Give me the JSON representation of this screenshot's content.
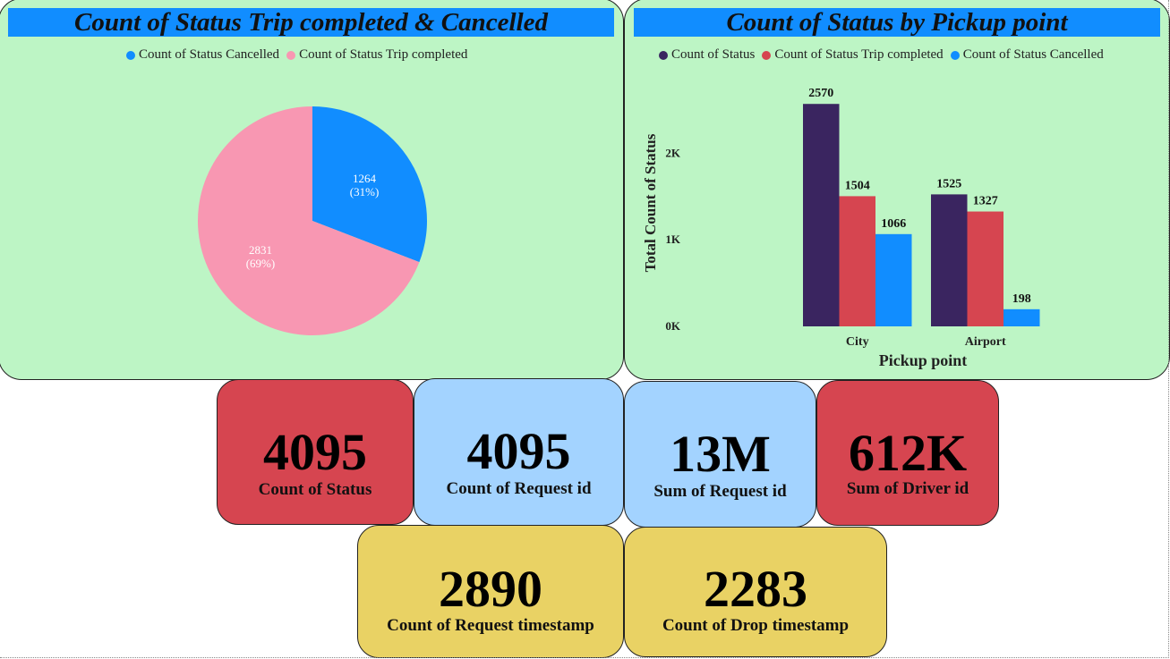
{
  "colors": {
    "panel_bg": "#bdf5c5",
    "title_bar": "#118dff",
    "red_card": "#d64550",
    "blue_card": "#a3d3ff",
    "yellow_card": "#e9d264",
    "cancelled": "#118dff",
    "completed": "#f897b2",
    "completed_bar": "#d64550",
    "status_bar": "#3a2560"
  },
  "pie_panel": {
    "title": "Count of Status Trip completed & Cancelled",
    "legend": [
      {
        "label": "Count of Status Cancelled",
        "color": "#118dff"
      },
      {
        "label": "Count of Status Trip completed",
        "color": "#f897b2"
      }
    ]
  },
  "bar_panel": {
    "title": "Count of Status by Pickup point",
    "legend": [
      {
        "label": "Count of Status",
        "color": "#3a2560"
      },
      {
        "label": "Count of Status Trip completed",
        "color": "#d64550"
      },
      {
        "label": "Count of Status Cancelled",
        "color": "#118dff"
      }
    ]
  },
  "chart_data": [
    {
      "type": "pie",
      "title": "Count of Status Trip completed & Cancelled",
      "slices": [
        {
          "name": "Count of Status Cancelled",
          "value": 1264,
          "percent": "31%",
          "label": "1264",
          "pct_label": "(31%)",
          "color": "#118dff"
        },
        {
          "name": "Count of Status Trip completed",
          "value": 2831,
          "percent": "69%",
          "label": "2831",
          "pct_label": "(69%)",
          "color": "#f897b2"
        }
      ]
    },
    {
      "type": "bar",
      "title": "Count of Status by Pickup point",
      "categories": [
        "City",
        "Airport"
      ],
      "series": [
        {
          "name": "Count of Status",
          "values": [
            2570,
            1525
          ],
          "color": "#3a2560"
        },
        {
          "name": "Count of Status Trip completed",
          "values": [
            1504,
            1327
          ],
          "color": "#d64550"
        },
        {
          "name": "Count of Status Cancelled",
          "values": [
            1066,
            198
          ],
          "color": "#118dff"
        }
      ],
      "xlabel": "Pickup point",
      "ylabel": "Total Count of Status",
      "yticks": [
        {
          "value": 0,
          "label": "0K"
        },
        {
          "value": 1000,
          "label": "1K"
        },
        {
          "value": 2000,
          "label": "2K"
        }
      ],
      "ylim": [
        0,
        2600
      ],
      "grid": false,
      "legend_position": "top"
    }
  ],
  "cards": {
    "count_status": {
      "value": "4095",
      "label": "Count of Status"
    },
    "count_request_id": {
      "value": "4095",
      "label": "Count of Request id"
    },
    "sum_request_id": {
      "value": "13M",
      "label": "Sum of Request id"
    },
    "sum_driver_id": {
      "value": "612K",
      "label": "Sum of Driver id"
    },
    "count_request_ts": {
      "value": "2890",
      "label": "Count of Request timestamp"
    },
    "count_drop_ts": {
      "value": "2283",
      "label": "Count of Drop timestamp"
    }
  }
}
